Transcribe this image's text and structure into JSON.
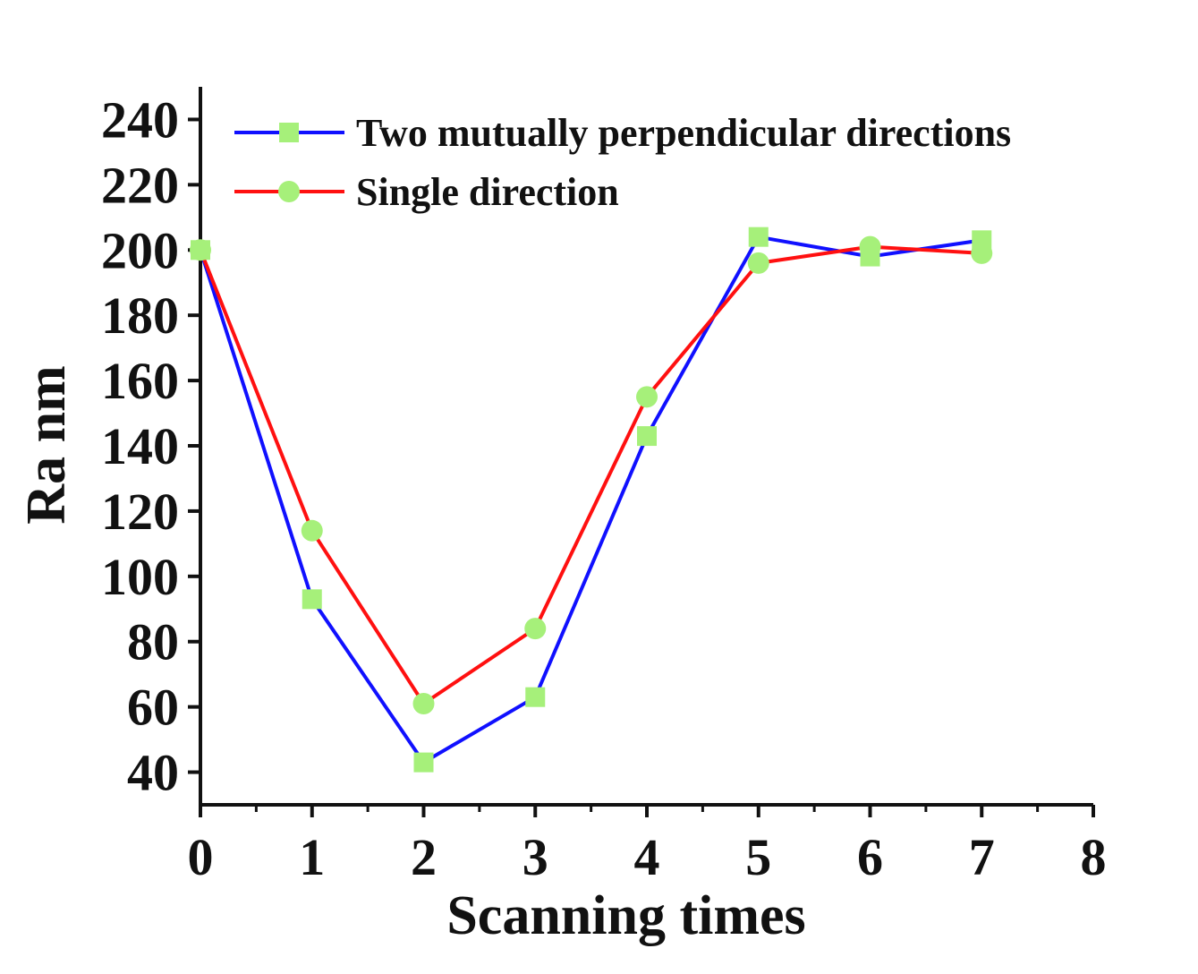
{
  "chart_data": {
    "type": "line",
    "title": "",
    "xlabel": "Scanning times",
    "ylabel": "Ra nm",
    "xlim": [
      0,
      8
    ],
    "ylim": [
      30,
      250
    ],
    "x_ticks": [
      "0",
      "1",
      "2",
      "3",
      "4",
      "5",
      "6",
      "7",
      "8"
    ],
    "y_ticks": [
      "40",
      "60",
      "80",
      "100",
      "120",
      "140",
      "160",
      "180",
      "200",
      "220",
      "240"
    ],
    "grid": false,
    "legend_position": "top-left",
    "series": [
      {
        "name": "Two mutually perpendicular directions",
        "color": "#1010ff",
        "marker": "square",
        "marker_color": "#a6f07a",
        "x": [
          0,
          1,
          2,
          3,
          4,
          5,
          6,
          7
        ],
        "values": [
          200,
          93,
          43,
          63,
          143,
          204,
          198,
          203
        ]
      },
      {
        "name": "Single direction",
        "color": "#ff1010",
        "marker": "circle",
        "marker_color": "#a6f07a",
        "x": [
          0,
          1,
          2,
          3,
          4,
          5,
          6,
          7
        ],
        "values": [
          200,
          114,
          61,
          84,
          155,
          196,
          201,
          199
        ]
      }
    ]
  }
}
